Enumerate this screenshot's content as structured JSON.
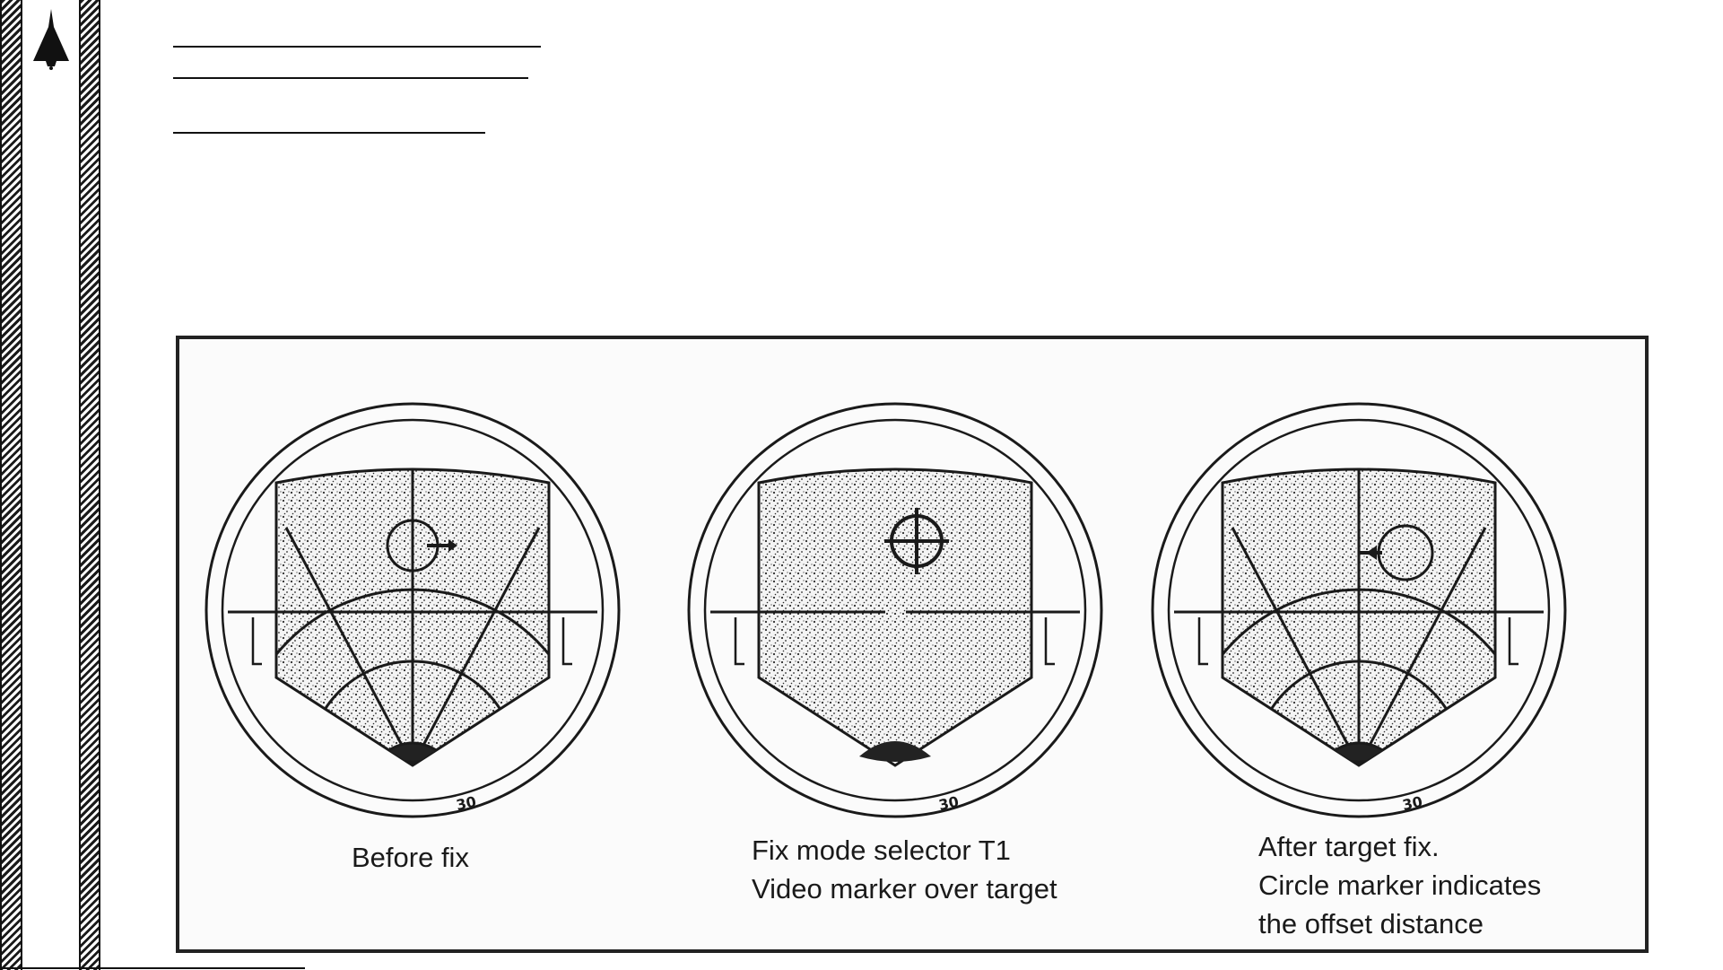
{
  "page": {
    "logo_icon": "aircraft-silhouette-icon",
    "header_lines": 3
  },
  "figure": {
    "panels": [
      {
        "id": "before-fix",
        "marker": "cross-and-circle",
        "range_label": "30",
        "caption_lines": [
          "Before fix"
        ]
      },
      {
        "id": "fix-mode",
        "marker": "crosshair-circle",
        "range_label": "30",
        "caption_lines": [
          "Fix mode selector T1",
          "Video marker over target"
        ]
      },
      {
        "id": "after-fix",
        "marker": "circle-offset",
        "range_label": "30",
        "caption_lines": [
          "After target fix.",
          "Circle marker indicates",
          "the offset distance"
        ]
      }
    ],
    "colors": {
      "ink": "#1a1a1a",
      "speckle": "#2b2b2b",
      "paper": "#fbfbfb"
    }
  }
}
